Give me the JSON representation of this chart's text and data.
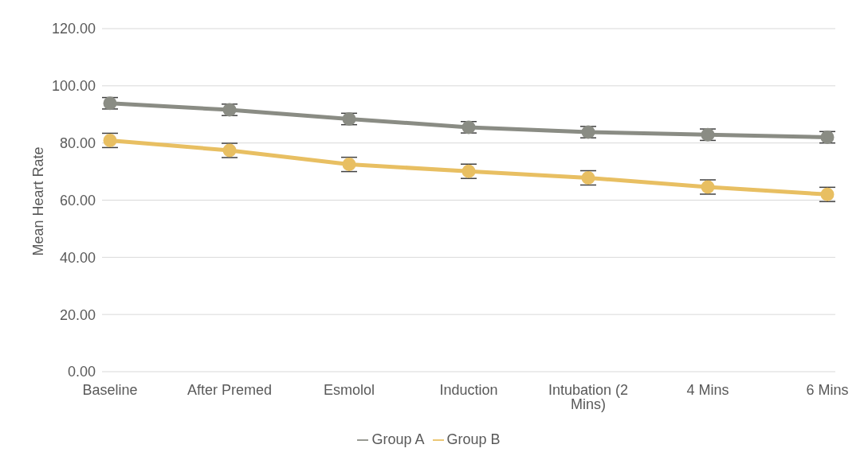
{
  "chart_data": {
    "type": "line",
    "ylabel": "Mean Heart Rate",
    "categories": [
      "Baseline",
      "After Premed",
      "Esmolol",
      "Induction",
      "Intubation (2 Mins)",
      "4 Mins",
      "6 Mins"
    ],
    "series": [
      {
        "name": "Group A",
        "color": "#8a8c84",
        "values": [
          93.9,
          91.6,
          88.4,
          85.5,
          83.8,
          82.9,
          82.0
        ],
        "errors": [
          2,
          2,
          2,
          2,
          2,
          2,
          2
        ]
      },
      {
        "name": "Group B",
        "color": "#e8bf62",
        "values": [
          80.9,
          77.4,
          72.5,
          70.1,
          67.8,
          64.6,
          62.0
        ],
        "errors": [
          2.5,
          2.5,
          2.5,
          2.5,
          2.5,
          2.5,
          2.5
        ]
      }
    ],
    "ylim": [
      0,
      120
    ],
    "yticks": [
      {
        "value": 0,
        "label": "0.00"
      },
      {
        "value": 20,
        "label": "20.00"
      },
      {
        "value": 40,
        "label": "40.00"
      },
      {
        "value": 60,
        "label": "60.00"
      },
      {
        "value": 80,
        "label": "80.00"
      },
      {
        "value": 100,
        "label": "100.00"
      },
      {
        "value": 120,
        "label": "120.00"
      }
    ],
    "grid": "y",
    "legend": "bottom",
    "marker": "circle",
    "line_style": "solid"
  }
}
